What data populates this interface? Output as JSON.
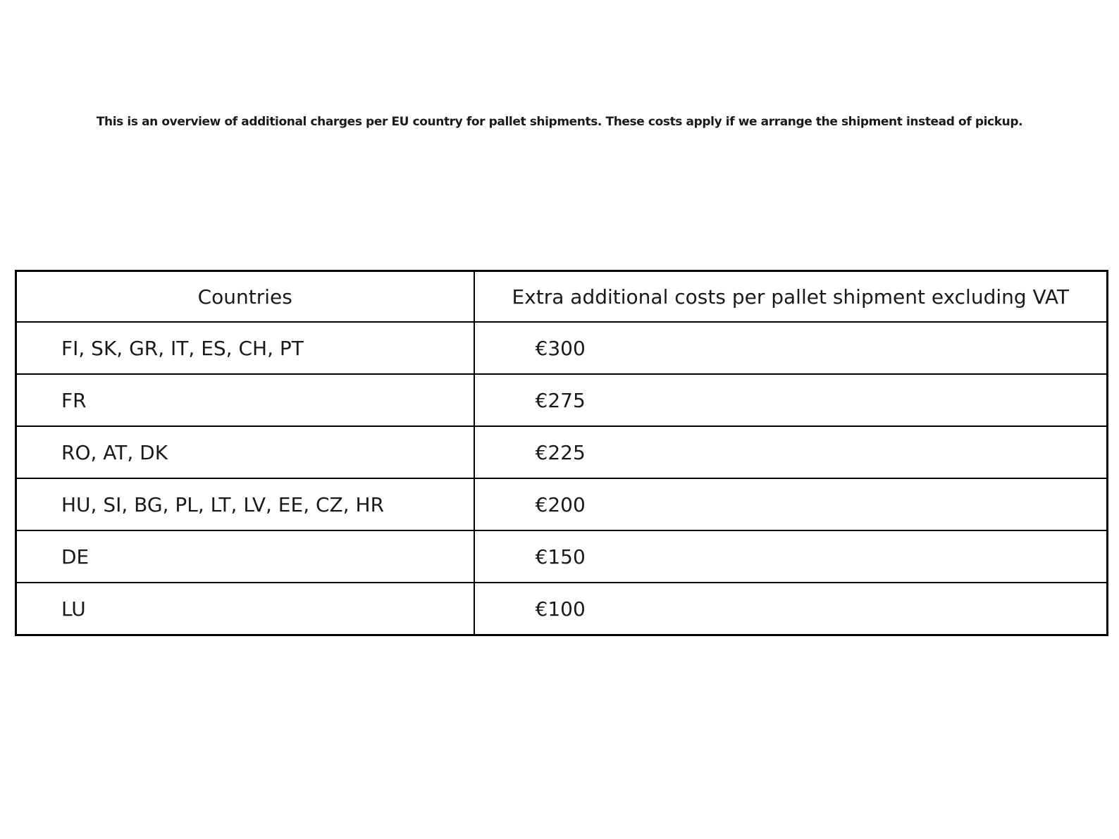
{
  "intro": {
    "text": "This is an overview of additional charges per EU country for pallet shipments. These costs apply if we arrange the shipment instead of pickup."
  },
  "table": {
    "columns": [
      "Countries",
      "Extra additional costs per pallet shipment excluding VAT"
    ],
    "rows": [
      {
        "countries": "FI, SK, GR, IT, ES, CH, PT",
        "cost": "€300"
      },
      {
        "countries": "FR",
        "cost": "€275"
      },
      {
        "countries": "RO, AT, DK",
        "cost": "€225"
      },
      {
        "countries": "HU, SI, BG, PL, LT, LV, EE, CZ, HR",
        "cost": "€200"
      },
      {
        "countries": "DE",
        "cost": "€150"
      },
      {
        "countries": "LU",
        "cost": "€100"
      }
    ]
  },
  "colors": {
    "background": "#ffffff",
    "border": "#000000",
    "text": "#1a1a1a"
  }
}
